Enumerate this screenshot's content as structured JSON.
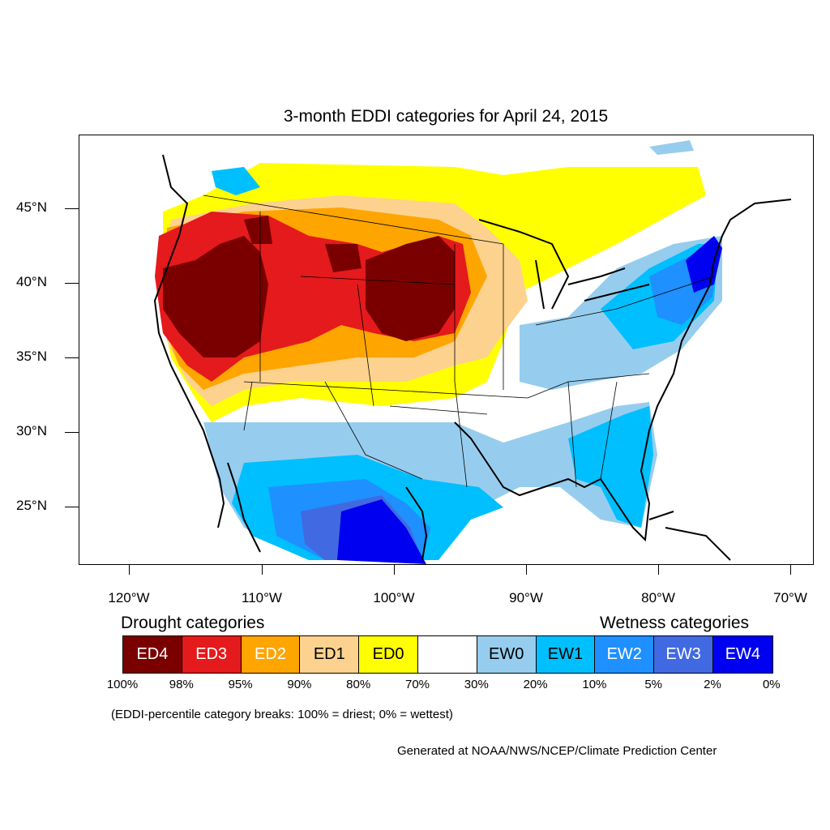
{
  "title": "3-month EDDI categories for April 24, 2015",
  "latitude_labels": [
    "45°N",
    "40°N",
    "35°N",
    "30°N",
    "25°N"
  ],
  "longitude_labels": [
    "120°W",
    "110°W",
    "100°W",
    "90°W",
    "80°W",
    "70°W"
  ],
  "legend": {
    "drought_title": "Drought categories",
    "wetness_title": "Wetness categories",
    "categories": [
      {
        "label": "ED4",
        "color": "#7a0000",
        "text_color": "#ffffff"
      },
      {
        "label": "ED3",
        "color": "#e41a1c",
        "text_color": "#ffffff"
      },
      {
        "label": "ED2",
        "color": "#ffa500",
        "text_color": "#ffffff"
      },
      {
        "label": "ED1",
        "color": "#fcd28e",
        "text_color": "#000000"
      },
      {
        "label": "ED0",
        "color": "#ffff00",
        "text_color": "#000000"
      },
      {
        "label": "",
        "color": "#ffffff",
        "text_color": "#000000"
      },
      {
        "label": "EW0",
        "color": "#96cdee",
        "text_color": "#000000"
      },
      {
        "label": "EW1",
        "color": "#00bfff",
        "text_color": "#000000"
      },
      {
        "label": "EW2",
        "color": "#1e90ff",
        "text_color": "#ffffff"
      },
      {
        "label": "EW3",
        "color": "#4169e1",
        "text_color": "#ffffff"
      },
      {
        "label": "EW4",
        "color": "#0000f0",
        "text_color": "#ffffff"
      }
    ],
    "breaks": [
      "100%",
      "98%",
      "95%",
      "90%",
      "80%",
      "70%",
      "30%",
      "20%",
      "10%",
      "5%",
      "2%",
      "0%"
    ]
  },
  "note": "(EDDI-percentile category breaks: 100% = driest; 0% = wettest)",
  "credit": "Generated at NOAA/NWS/NCEP/Climate Prediction Center"
}
